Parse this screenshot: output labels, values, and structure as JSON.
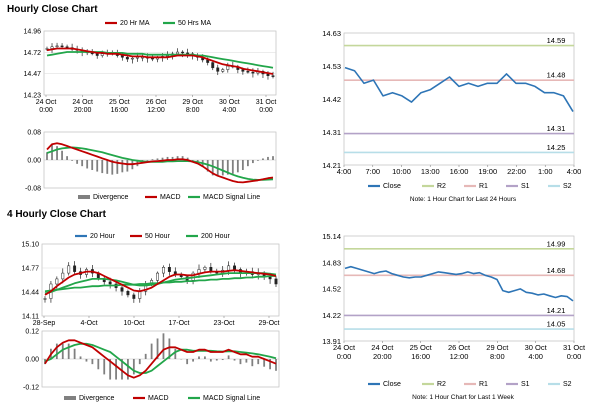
{
  "sections": [
    {
      "title": "Hourly Close Chart"
    },
    {
      "title": "4 Hourly Close Chart"
    }
  ],
  "colors": {
    "close": "#2e75b6",
    "ma20": "#c00000",
    "ma50": "#22a64a",
    "ma200": "#22a64a",
    "r2": "#c4d79b",
    "r1": "#e6b8b7",
    "s1": "#b3a2c7",
    "s2": "#b7dee8",
    "candle": "#222222",
    "divergence": "#808080",
    "grid": "#d9d9d9"
  },
  "chart_data": [
    {
      "id": "hourly-price",
      "type": "candlestick",
      "legend": [
        "20 Hr MA",
        "50 Hrs MA"
      ],
      "yticks": [
        "14.96",
        "14.72",
        "14.47",
        "14.23"
      ],
      "ylim": [
        14.23,
        14.96
      ],
      "xticks": [
        [
          "24 Oct",
          "0:00"
        ],
        [
          "24 Oct",
          "20:00"
        ],
        [
          "25 Oct",
          "16:00"
        ],
        [
          "26 Oct",
          "12:00"
        ],
        [
          "29 Oct",
          "8:00"
        ],
        [
          "30 Oct",
          "4:00"
        ],
        [
          "31 Oct",
          "0:00"
        ]
      ],
      "close": [
        14.76,
        14.78,
        14.79,
        14.78,
        14.77,
        14.75,
        14.74,
        14.72,
        14.72,
        14.7,
        14.68,
        14.7,
        14.71,
        14.7,
        14.68,
        14.66,
        14.64,
        14.65,
        14.66,
        14.66,
        14.65,
        14.64,
        14.66,
        14.67,
        14.68,
        14.7,
        14.72,
        14.71,
        14.7,
        14.68,
        14.66,
        14.63,
        14.6,
        14.54,
        14.5,
        14.52,
        14.56,
        14.55,
        14.52,
        14.5,
        14.49,
        14.48,
        14.5,
        14.47,
        14.45,
        14.44
      ],
      "ma20": [
        14.74,
        14.75,
        14.76,
        14.76,
        14.76,
        14.76,
        14.75,
        14.74,
        14.73,
        14.72,
        14.71,
        14.71,
        14.7,
        14.7,
        14.7,
        14.69,
        14.68,
        14.67,
        14.67,
        14.67,
        14.66,
        14.66,
        14.66,
        14.66,
        14.66,
        14.67,
        14.68,
        14.68,
        14.68,
        14.68,
        14.67,
        14.66,
        14.64,
        14.62,
        14.6,
        14.58,
        14.57,
        14.56,
        14.55,
        14.53,
        14.52,
        14.51,
        14.5,
        14.49,
        14.48,
        14.47
      ],
      "ma50": [
        14.68,
        14.69,
        14.7,
        14.71,
        14.72,
        14.72,
        14.72,
        14.72,
        14.72,
        14.72,
        14.72,
        14.72,
        14.71,
        14.71,
        14.71,
        14.71,
        14.7,
        14.7,
        14.7,
        14.7,
        14.69,
        14.69,
        14.69,
        14.69,
        14.69,
        14.69,
        14.69,
        14.69,
        14.69,
        14.69,
        14.68,
        14.68,
        14.67,
        14.66,
        14.65,
        14.64,
        14.63,
        14.62,
        14.61,
        14.6,
        14.59,
        14.58,
        14.57,
        14.56,
        14.55,
        14.54
      ]
    },
    {
      "id": "hourly-macd",
      "type": "line+bar",
      "legend": [
        "Divergence",
        "MACD",
        "MACD Signal Line"
      ],
      "yticks": [
        "0.08",
        "0.00",
        "-0.08"
      ],
      "ylim": [
        -0.08,
        0.08
      ],
      "macd": [
        0.03,
        0.045,
        0.048,
        0.045,
        0.04,
        0.035,
        0.03,
        0.025,
        0.02,
        0.015,
        0.01,
        0.005,
        0.0,
        -0.005,
        -0.008,
        -0.01,
        -0.012,
        -0.012,
        -0.01,
        -0.008,
        -0.006,
        -0.004,
        -0.003,
        -0.002,
        0.0,
        0.0,
        0.002,
        0.002,
        0.0,
        -0.005,
        -0.01,
        -0.018,
        -0.028,
        -0.038,
        -0.045,
        -0.05,
        -0.055,
        -0.06,
        -0.063,
        -0.064,
        -0.062,
        -0.06,
        -0.058,
        -0.055,
        -0.052,
        -0.05
      ],
      "signal": [
        0.02,
        0.025,
        0.03,
        0.033,
        0.035,
        0.036,
        0.035,
        0.033,
        0.031,
        0.028,
        0.025,
        0.022,
        0.018,
        0.014,
        0.01,
        0.006,
        0.003,
        0.0,
        -0.002,
        -0.004,
        -0.005,
        -0.005,
        -0.005,
        -0.005,
        -0.004,
        -0.004,
        -0.003,
        -0.003,
        -0.003,
        -0.004,
        -0.006,
        -0.009,
        -0.013,
        -0.018,
        -0.024,
        -0.03,
        -0.036,
        -0.042,
        -0.047,
        -0.051,
        -0.054,
        -0.056,
        -0.057,
        -0.057,
        -0.056,
        -0.055
      ]
    },
    {
      "id": "hourly-levels",
      "type": "line",
      "legend": [
        "Close",
        "R2",
        "R1",
        "S1",
        "S2"
      ],
      "note": "Note: 1 Hour Chart for Last 24 Hours",
      "yticks": [
        "14.63",
        "14.53",
        "14.42",
        "14.31",
        "14.21"
      ],
      "ylim": [
        14.21,
        14.63
      ],
      "xticks": [
        "4:00",
        "7:00",
        "10:00",
        "13:00",
        "16:00",
        "19:00",
        "22:00",
        "1:00",
        "4:00"
      ],
      "levels": [
        {
          "name": "R2",
          "value": 14.59,
          "label": "14.59"
        },
        {
          "name": "R1",
          "value": 14.48,
          "label": "14.48"
        },
        {
          "name": "S1",
          "value": 14.31,
          "label": "14.31"
        },
        {
          "name": "S2",
          "value": 14.25,
          "label": "14.25"
        }
      ],
      "close": [
        14.52,
        14.51,
        14.47,
        14.48,
        14.43,
        14.44,
        14.43,
        14.41,
        14.44,
        14.45,
        14.47,
        14.49,
        14.46,
        14.47,
        14.46,
        14.47,
        14.47,
        14.5,
        14.47,
        14.47,
        14.46,
        14.44,
        14.44,
        14.43,
        14.38
      ]
    },
    {
      "id": "four-hourly-price",
      "type": "candlestick",
      "legend": [
        "20 Hour",
        "50 Hour",
        "200 Hour"
      ],
      "yticks": [
        "15.10",
        "14.77",
        "14.44",
        "14.11"
      ],
      "ylim": [
        14.11,
        15.1
      ],
      "xticks": [
        "28-Sep",
        "4-Oct",
        "10-Oct",
        "17-Oct",
        "23-Oct",
        "29-Oct"
      ],
      "close": [
        14.35,
        14.55,
        14.62,
        14.7,
        14.8,
        14.72,
        14.68,
        14.75,
        14.7,
        14.62,
        14.58,
        14.55,
        14.5,
        14.45,
        14.4,
        14.35,
        14.45,
        14.55,
        14.6,
        14.7,
        14.78,
        14.72,
        14.68,
        14.65,
        14.6,
        14.7,
        14.75,
        14.78,
        14.72,
        14.7,
        14.74,
        14.8,
        14.75,
        14.7,
        14.72,
        14.68,
        14.7,
        14.65,
        14.62,
        14.55
      ],
      "ma20": [
        14.4,
        14.45,
        14.52,
        14.58,
        14.64,
        14.68,
        14.7,
        14.72,
        14.72,
        14.7,
        14.66,
        14.62,
        14.58,
        14.54,
        14.5,
        14.46,
        14.45,
        14.47,
        14.5,
        14.55,
        14.6,
        14.65,
        14.68,
        14.68,
        14.67,
        14.67,
        14.69,
        14.71,
        14.72,
        14.72,
        14.72,
        14.73,
        14.74,
        14.73,
        14.72,
        14.71,
        14.7,
        14.69,
        14.68,
        14.66
      ],
      "ma50": [
        14.42,
        14.44,
        14.47,
        14.5,
        14.53,
        14.56,
        14.58,
        14.6,
        14.62,
        14.62,
        14.62,
        14.61,
        14.6,
        14.58,
        14.56,
        14.54,
        14.53,
        14.53,
        14.54,
        14.55,
        14.57,
        14.59,
        14.61,
        14.62,
        14.63,
        14.64,
        14.65,
        14.66,
        14.67,
        14.68,
        14.69,
        14.7,
        14.7,
        14.7,
        14.7,
        14.7,
        14.7,
        14.7,
        14.69,
        14.68
      ],
      "ma200": [
        14.45,
        14.46,
        14.47,
        14.48,
        14.49,
        14.5,
        14.5,
        14.51,
        14.52,
        14.52,
        14.53,
        14.53,
        14.53,
        14.54,
        14.54,
        14.54,
        14.55,
        14.55,
        14.56,
        14.56,
        14.57,
        14.57,
        14.58,
        14.58,
        14.59,
        14.59,
        14.6,
        14.6,
        14.61,
        14.61,
        14.62,
        14.62,
        14.63,
        14.63,
        14.64,
        14.64,
        14.65,
        14.65,
        14.66,
        14.66
      ]
    },
    {
      "id": "four-hourly-macd",
      "type": "line+bar",
      "legend": [
        "Divergence",
        "MACD",
        "MACD Signal Line"
      ],
      "yticks": [
        "0.12",
        "0.00",
        "-0.12"
      ],
      "ylim": [
        -0.12,
        0.12
      ],
      "macd": [
        -0.02,
        0.02,
        0.05,
        0.07,
        0.08,
        0.08,
        0.07,
        0.06,
        0.05,
        0.03,
        0.01,
        -0.01,
        -0.03,
        -0.05,
        -0.07,
        -0.08,
        -0.07,
        -0.05,
        -0.02,
        0.01,
        0.04,
        0.05,
        0.05,
        0.04,
        0.03,
        0.03,
        0.04,
        0.04,
        0.03,
        0.03,
        0.03,
        0.04,
        0.03,
        0.02,
        0.02,
        0.01,
        0.01,
        0.0,
        -0.01,
        -0.02
      ],
      "signal": [
        -0.01,
        0.0,
        0.02,
        0.04,
        0.05,
        0.06,
        0.065,
        0.065,
        0.06,
        0.05,
        0.04,
        0.03,
        0.01,
        -0.01,
        -0.03,
        -0.05,
        -0.06,
        -0.06,
        -0.05,
        -0.03,
        -0.01,
        0.01,
        0.03,
        0.04,
        0.04,
        0.035,
        0.035,
        0.035,
        0.035,
        0.033,
        0.032,
        0.033,
        0.033,
        0.03,
        0.027,
        0.024,
        0.02,
        0.015,
        0.01,
        0.003
      ]
    },
    {
      "id": "four-hourly-levels",
      "type": "line",
      "legend": [
        "Close",
        "R2",
        "R1",
        "S1",
        "S2"
      ],
      "note": "Note: 1 Hour Chart for Last 1 Week",
      "yticks": [
        "15.14",
        "14.83",
        "14.52",
        "14.22",
        "13.91"
      ],
      "ylim": [
        13.91,
        15.14
      ],
      "xticks": [
        [
          "24 Oct",
          "0:00"
        ],
        [
          "24 Oct",
          "20:00"
        ],
        [
          "25 Oct",
          "16:00"
        ],
        [
          "26 Oct",
          "12:00"
        ],
        [
          "29 Oct",
          "8:00"
        ],
        [
          "30 Oct",
          "4:00"
        ],
        [
          "31 Oct",
          "0:00"
        ]
      ],
      "levels": [
        {
          "name": "R2",
          "value": 14.99,
          "label": "14.99"
        },
        {
          "name": "R1",
          "value": 14.68,
          "label": "14.68"
        },
        {
          "name": "S1",
          "value": 14.21,
          "label": "14.21"
        },
        {
          "name": "S2",
          "value": 14.05,
          "label": "14.05"
        }
      ],
      "close": [
        14.76,
        14.78,
        14.76,
        14.74,
        14.72,
        14.7,
        14.72,
        14.73,
        14.7,
        14.68,
        14.66,
        14.65,
        14.66,
        14.66,
        14.68,
        14.7,
        14.72,
        14.71,
        14.7,
        14.69,
        14.7,
        14.72,
        14.7,
        14.71,
        14.68,
        14.66,
        14.63,
        14.5,
        14.48,
        14.5,
        14.52,
        14.48,
        14.47,
        14.45,
        14.46,
        14.44,
        14.42,
        14.44,
        14.43,
        14.38
      ]
    }
  ]
}
